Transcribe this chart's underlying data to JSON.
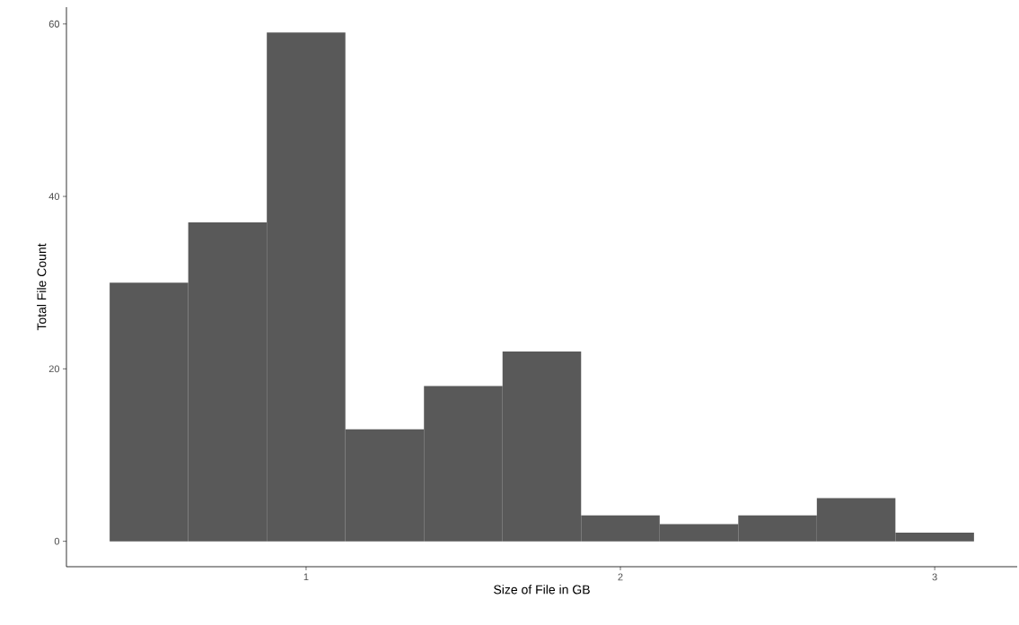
{
  "chart_data": {
    "type": "histogram",
    "xlabel": "Size of File in GB",
    "ylabel": "Total File Count",
    "bins": [
      0.375,
      0.625,
      0.875,
      1.125,
      1.375,
      1.625,
      1.875,
      2.125,
      2.375,
      2.625,
      2.875,
      3.125
    ],
    "values": [
      30,
      37,
      59,
      13,
      18,
      22,
      3,
      2,
      3,
      5,
      1
    ],
    "color": "#595959",
    "xlim": [
      0.2375,
      3.2625
    ],
    "ylim": [
      -2.95,
      61.95
    ],
    "xticks": [
      1,
      2,
      3
    ],
    "yticks": [
      0,
      20,
      40,
      60
    ],
    "grid": false
  }
}
